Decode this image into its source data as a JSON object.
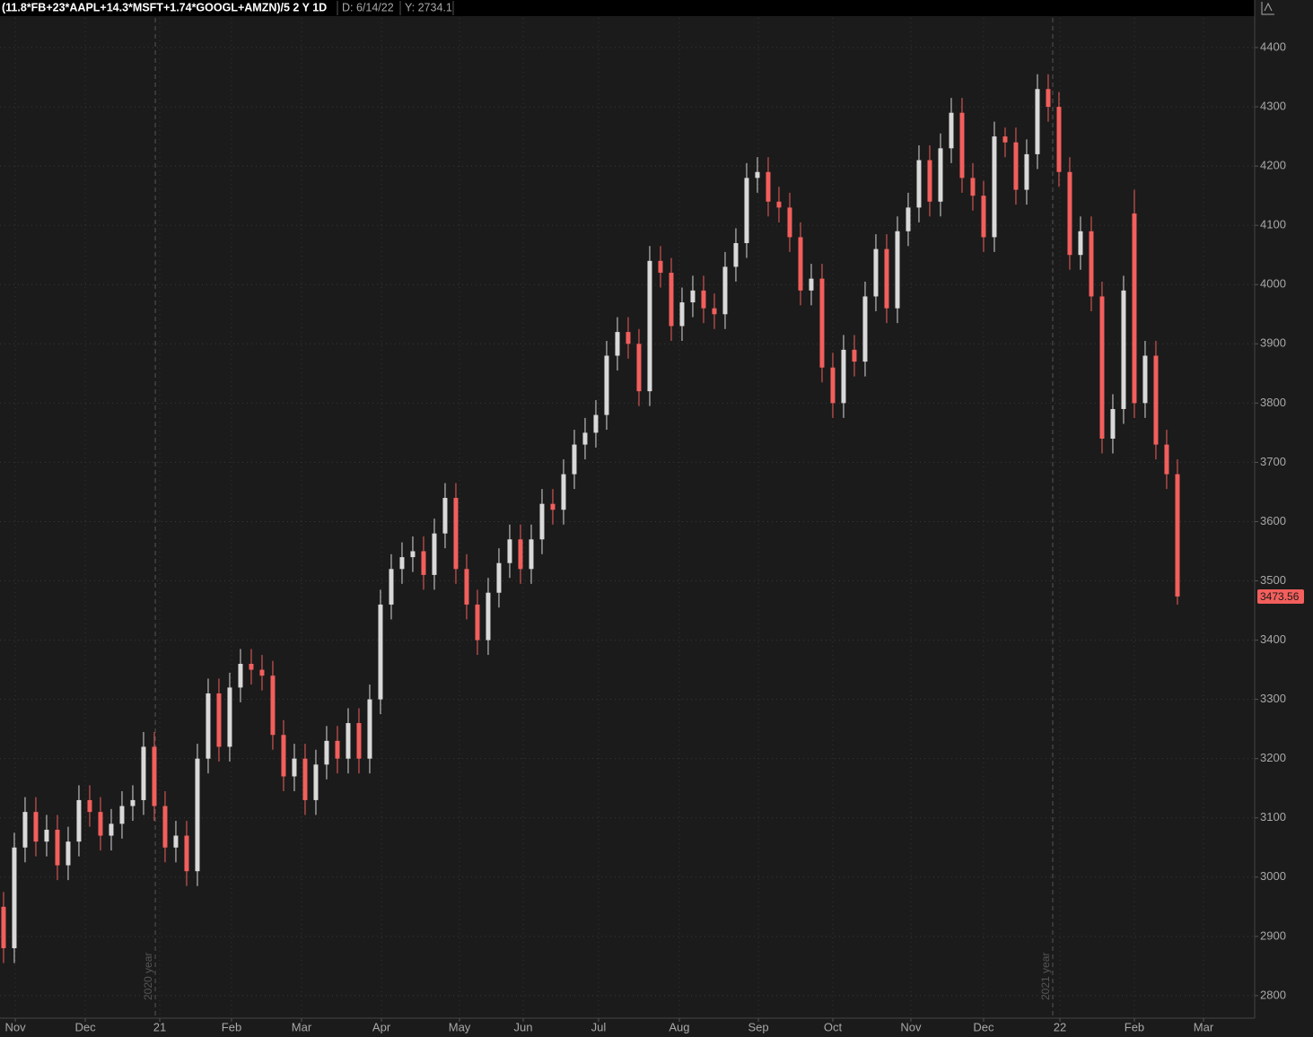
{
  "chart_data": {
    "type": "candlestick",
    "title": "(11.8*FB+23*AAPL+14.3*MSFT+1.74*GOOGL+AMZN)/5 2 Y 1D",
    "date_label": "D: 6/14/22",
    "y_label": "Y: 2734.1",
    "up_color": "#d9d9d9",
    "down_color": "#f25f5c",
    "grid": true,
    "xlim": [
      -0.33,
      116.17
    ],
    "ylim": [
      2762,
      4450
    ],
    "yticks": [
      2800,
      2900,
      3000,
      3100,
      3200,
      3300,
      3400,
      3500,
      3600,
      3700,
      3800,
      3900,
      4000,
      4100,
      4200,
      4300,
      4400
    ],
    "xticks": [
      {
        "value": 1.09,
        "label": "Nov"
      },
      {
        "value": 7.59,
        "label": "Dec"
      },
      {
        "value": 14.5,
        "label": "21"
      },
      {
        "value": 21.17,
        "label": "Feb"
      },
      {
        "value": 27.67,
        "label": "Mar"
      },
      {
        "value": 35.09,
        "label": "Apr"
      },
      {
        "value": 42.34,
        "label": "May"
      },
      {
        "value": 48.25,
        "label": "Jun"
      },
      {
        "value": 55.25,
        "label": "Jul"
      },
      {
        "value": 62.75,
        "label": "Aug"
      },
      {
        "value": 70.09,
        "label": "Sep"
      },
      {
        "value": 77.0,
        "label": "Oct"
      },
      {
        "value": 84.25,
        "label": "Nov"
      },
      {
        "value": 91.0,
        "label": "Dec"
      },
      {
        "value": 98.09,
        "label": "22"
      },
      {
        "value": 105.0,
        "label": "Feb"
      },
      {
        "value": 111.42,
        "label": "Mar"
      }
    ],
    "annotations": [
      {
        "x": 14.09,
        "text": "2020 year"
      },
      {
        "x": 97.42,
        "text": "2021 year"
      }
    ],
    "open": [
      2950,
      2880,
      3050,
      3110,
      3060,
      3080,
      3020,
      3060,
      3130,
      3110,
      3070,
      3090,
      3120,
      3130,
      3220,
      3120,
      3050,
      3070,
      3010,
      3200,
      3310,
      3220,
      3320,
      3360,
      3350,
      3340,
      3240,
      3170,
      3200,
      3130,
      3190,
      3230,
      3200,
      3260,
      3200,
      3300,
      3460,
      3520,
      3540,
      3550,
      3510,
      3580,
      3640,
      3520,
      3460,
      3400,
      3480,
      3530,
      3570,
      3520,
      3570,
      3630,
      3620,
      3680,
      3730,
      3750,
      3780,
      3880,
      3920,
      3900,
      3820,
      4040,
      4020,
      3930,
      3970,
      3990,
      3960,
      3950,
      4030,
      4070,
      4180,
      4190,
      4140,
      4130,
      4080,
      3990,
      4010,
      3860,
      3800,
      3890,
      3870,
      3980,
      4060,
      3960,
      4090,
      4130,
      4210,
      4140,
      4230,
      4290,
      4180,
      4150,
      4080,
      4250,
      4240,
      4160,
      4220,
      4330,
      4300,
      4190,
      4050,
      4090,
      3980,
      3740,
      3790,
      4120,
      3800,
      3880,
      3730,
      3680
    ],
    "high": [
      2975,
      3075,
      3135,
      3135,
      3105,
      3105,
      3085,
      3155,
      3155,
      3135,
      3115,
      3145,
      3155,
      3245,
      3245,
      3145,
      3095,
      3095,
      3225,
      3335,
      3335,
      3345,
      3385,
      3385,
      3375,
      3365,
      3265,
      3225,
      3225,
      3215,
      3255,
      3255,
      3285,
      3285,
      3325,
      3485,
      3545,
      3565,
      3575,
      3575,
      3605,
      3665,
      3665,
      3545,
      3485,
      3505,
      3555,
      3595,
      3595,
      3595,
      3655,
      3655,
      3705,
      3755,
      3775,
      3805,
      3905,
      3945,
      3945,
      3925,
      4065,
      4065,
      4045,
      3995,
      4015,
      4015,
      3985,
      4055,
      4095,
      4205,
      4215,
      4215,
      4165,
      4155,
      4105,
      4035,
      4035,
      3885,
      3915,
      3915,
      4005,
      4085,
      4085,
      4115,
      4155,
      4235,
      4235,
      4255,
      4315,
      4315,
      4205,
      4175,
      4275,
      4265,
      4265,
      4245,
      4355,
      4355,
      4325,
      4215,
      4115,
      4115,
      4005,
      3815,
      4015,
      4160,
      3905,
      3905,
      3755,
      3705
    ],
    "low": [
      2855,
      2855,
      3025,
      3035,
      3035,
      2995,
      2995,
      3035,
      3085,
      3045,
      3045,
      3065,
      3095,
      3105,
      3095,
      3025,
      3025,
      2985,
      2985,
      3175,
      3195,
      3195,
      3295,
      3325,
      3315,
      3215,
      3145,
      3145,
      3105,
      3105,
      3165,
      3175,
      3175,
      3175,
      3175,
      3275,
      3435,
      3495,
      3515,
      3485,
      3485,
      3555,
      3495,
      3435,
      3375,
      3375,
      3455,
      3505,
      3495,
      3495,
      3545,
      3595,
      3595,
      3655,
      3705,
      3725,
      3755,
      3855,
      3875,
      3795,
      3795,
      3995,
      3905,
      3905,
      3945,
      3935,
      3925,
      3925,
      4005,
      4045,
      4155,
      4115,
      4105,
      4055,
      3965,
      3965,
      3835,
      3775,
      3775,
      3845,
      3845,
      3955,
      3935,
      3935,
      4065,
      4105,
      4115,
      4115,
      4205,
      4155,
      4125,
      4055,
      4055,
      4215,
      4135,
      4135,
      4195,
      4275,
      4165,
      4025,
      4025,
      3955,
      3715,
      3715,
      3765,
      3775,
      3775,
      3705,
      3655,
      3460
    ],
    "close": [
      2880,
      3050,
      3110,
      3060,
      3080,
      3020,
      3060,
      3130,
      3110,
      3070,
      3090,
      3120,
      3130,
      3220,
      3120,
      3050,
      3070,
      3010,
      3200,
      3310,
      3220,
      3320,
      3360,
      3350,
      3340,
      3240,
      3170,
      3200,
      3130,
      3190,
      3230,
      3200,
      3260,
      3200,
      3300,
      3460,
      3520,
      3540,
      3550,
      3510,
      3580,
      3640,
      3520,
      3460,
      3400,
      3480,
      3530,
      3570,
      3520,
      3570,
      3630,
      3620,
      3680,
      3730,
      3750,
      3780,
      3880,
      3920,
      3900,
      3820,
      4040,
      4020,
      3930,
      3970,
      3990,
      3960,
      3950,
      4030,
      4070,
      4180,
      4190,
      4140,
      4130,
      4080,
      3990,
      4010,
      3860,
      3800,
      3890,
      3870,
      3980,
      4060,
      3960,
      4090,
      4130,
      4210,
      4140,
      4230,
      4290,
      4180,
      4150,
      4080,
      4250,
      4240,
      4160,
      4220,
      4330,
      4300,
      4190,
      4050,
      4090,
      3980,
      3740,
      3790,
      3990,
      3800,
      3880,
      3730,
      3680,
      3473.56
    ]
  }
}
